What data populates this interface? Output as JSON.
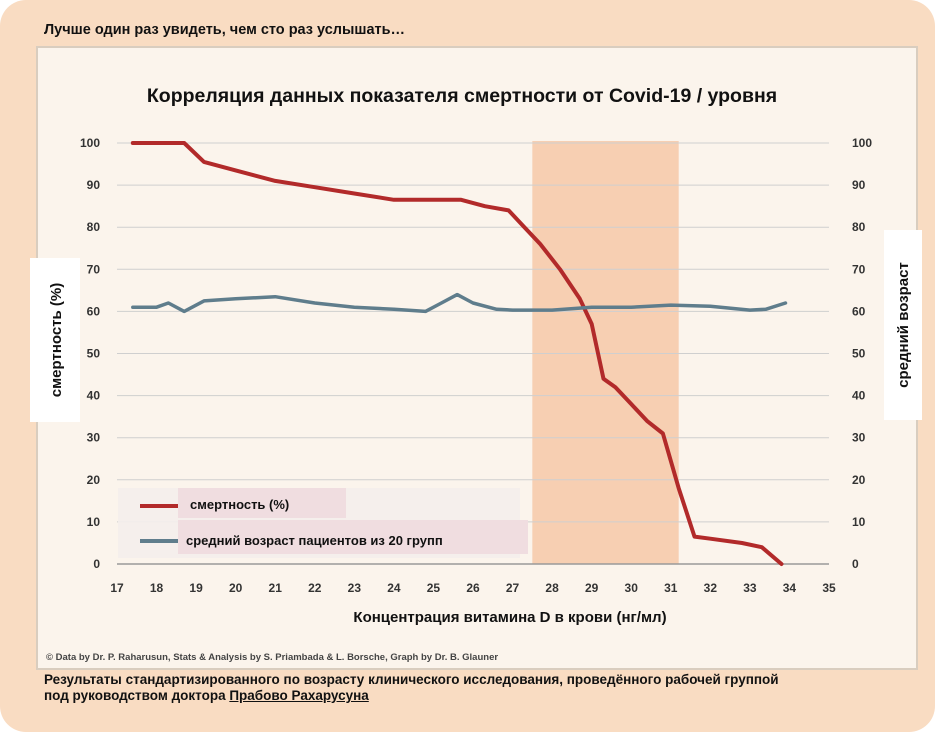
{
  "top_caption": "Лучше один раз увидеть, чем сто раз услышать…",
  "footer": {
    "line1": "Результаты стандартизированного по возрасту клинического исследования, проведённого рабочей группой",
    "line2_prefix": "под руководством доктора ",
    "line2_name": "Прабово Рахарусуна"
  },
  "chart_data": {
    "type": "line",
    "title": "Корреляция данных показателя смертности от Covid-19 / уровня",
    "xlabel": "Концентрация  витамина  D в крови (нг/мл)",
    "ylabel_left": "смертность (%)",
    "ylabel_right": "средний  возраст",
    "credit": "© Data by Dr. P. Raharusun, Stats & Analysis by S. Priambada & L. Borsche, Graph by Dr. B. Glauner",
    "xlim": [
      17,
      35
    ],
    "ylim": [
      0,
      100
    ],
    "x_ticks": [
      17,
      18,
      19,
      20,
      21,
      22,
      23,
      24,
      25,
      26,
      27,
      28,
      29,
      30,
      31,
      32,
      33,
      34,
      35
    ],
    "y_ticks": [
      0,
      10,
      20,
      30,
      40,
      50,
      60,
      70,
      80,
      90,
      100
    ],
    "grid": true,
    "highlight_band": [
      27.5,
      31.2
    ],
    "legend_placement": "bottom-left",
    "series": [
      {
        "name": "смертность (%)",
        "color": "#b22a2a",
        "points": [
          [
            17.4,
            100
          ],
          [
            18,
            100
          ],
          [
            18.7,
            100
          ],
          [
            19.2,
            95.5
          ],
          [
            20,
            93.5
          ],
          [
            21,
            91
          ],
          [
            22,
            89.5
          ],
          [
            23,
            88
          ],
          [
            24,
            86.5
          ],
          [
            24.7,
            86.5
          ],
          [
            25.7,
            86.5
          ],
          [
            26.3,
            85
          ],
          [
            26.9,
            84
          ],
          [
            27.3,
            80
          ],
          [
            27.7,
            76
          ],
          [
            28.2,
            70
          ],
          [
            28.7,
            63
          ],
          [
            29,
            57
          ],
          [
            29.3,
            44
          ],
          [
            29.6,
            42
          ],
          [
            30,
            38
          ],
          [
            30.4,
            34
          ],
          [
            30.8,
            31
          ],
          [
            31.2,
            18
          ],
          [
            31.6,
            6.5
          ],
          [
            32,
            6
          ],
          [
            32.8,
            5
          ],
          [
            33.3,
            4
          ],
          [
            33.8,
            0
          ]
        ]
      },
      {
        "name": "средний возраст пациентов из 20 групп",
        "color": "#5f7d8c",
        "points": [
          [
            17.4,
            61
          ],
          [
            18,
            61
          ],
          [
            18.3,
            62
          ],
          [
            18.7,
            60
          ],
          [
            19.2,
            62.5
          ],
          [
            20,
            63
          ],
          [
            21,
            63.5
          ],
          [
            22,
            62
          ],
          [
            23,
            61
          ],
          [
            24,
            60.5
          ],
          [
            24.8,
            60
          ],
          [
            25.2,
            62
          ],
          [
            25.6,
            64
          ],
          [
            26,
            62
          ],
          [
            26.6,
            60.5
          ],
          [
            27,
            60.3
          ],
          [
            28,
            60.3
          ],
          [
            29,
            61
          ],
          [
            30,
            61
          ],
          [
            31,
            61.5
          ],
          [
            32,
            61.2
          ],
          [
            33,
            60.3
          ],
          [
            33.4,
            60.5
          ],
          [
            33.9,
            62
          ]
        ]
      }
    ]
  }
}
